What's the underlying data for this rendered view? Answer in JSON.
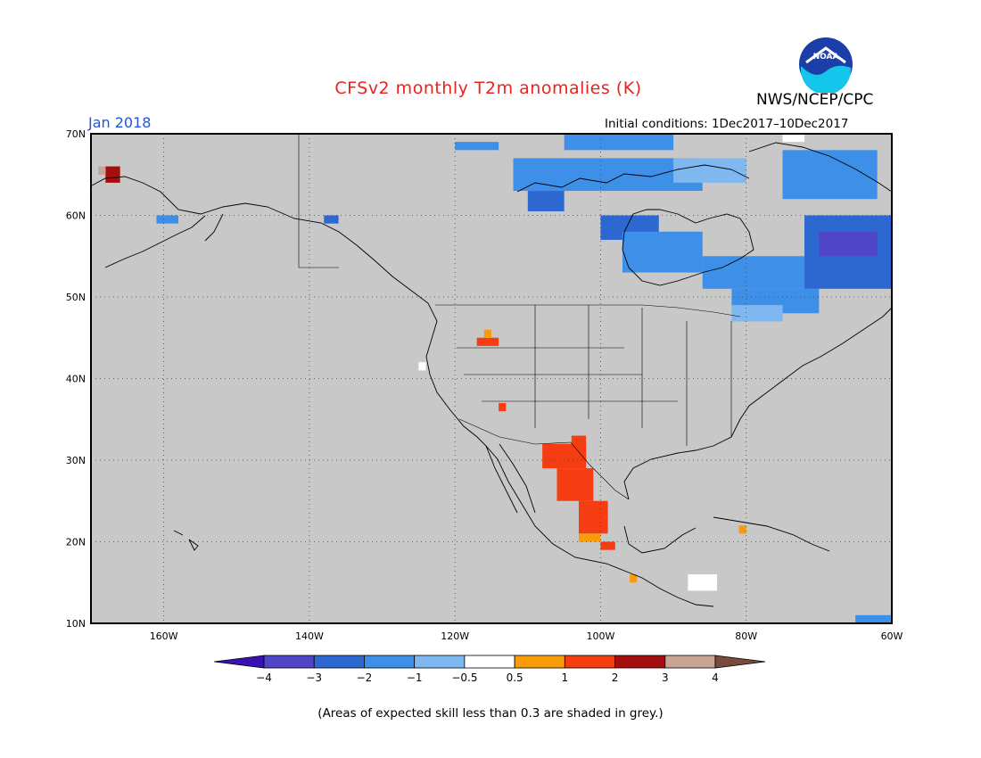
{
  "header": {
    "title": "CFSv2 monthly T2m anomalies (K)",
    "agency": "NWS/NCEP/CPC",
    "logo_text": "NOAA",
    "month": "Jan 2018",
    "initial_conditions": "Initial conditions: 1Dec2017–10Dec2017"
  },
  "map": {
    "lat_range": [
      10,
      70
    ],
    "lon_range": [
      -170,
      -60
    ],
    "lat_labels": [
      "70N",
      "60N",
      "50N",
      "40N",
      "30N",
      "20N",
      "10N"
    ],
    "lat_values": [
      70,
      60,
      50,
      40,
      30,
      20,
      10
    ],
    "lon_labels": [
      "160W",
      "140W",
      "120W",
      "100W",
      "80W",
      "60W"
    ],
    "lon_values": [
      -160,
      -140,
      -120,
      -100,
      -80,
      -60
    ],
    "grid": true,
    "background_color": "#c8c8c8"
  },
  "colorbar": {
    "tick_labels": [
      "−4",
      "−3",
      "−2",
      "−1",
      "−0.5",
      "0.5",
      "1",
      "2",
      "3",
      "4"
    ],
    "colors": [
      "#3a10b4",
      "#4f45c9",
      "#2d67d0",
      "#3d8fe8",
      "#7fb7f0",
      "#ffffff",
      "#f99c0a",
      "#f43d12",
      "#a50e0e",
      "#c9a394",
      "#7a4a3b"
    ]
  },
  "footnote": "(Areas of expected skill less than 0.3 are shaded in grey.)"
}
